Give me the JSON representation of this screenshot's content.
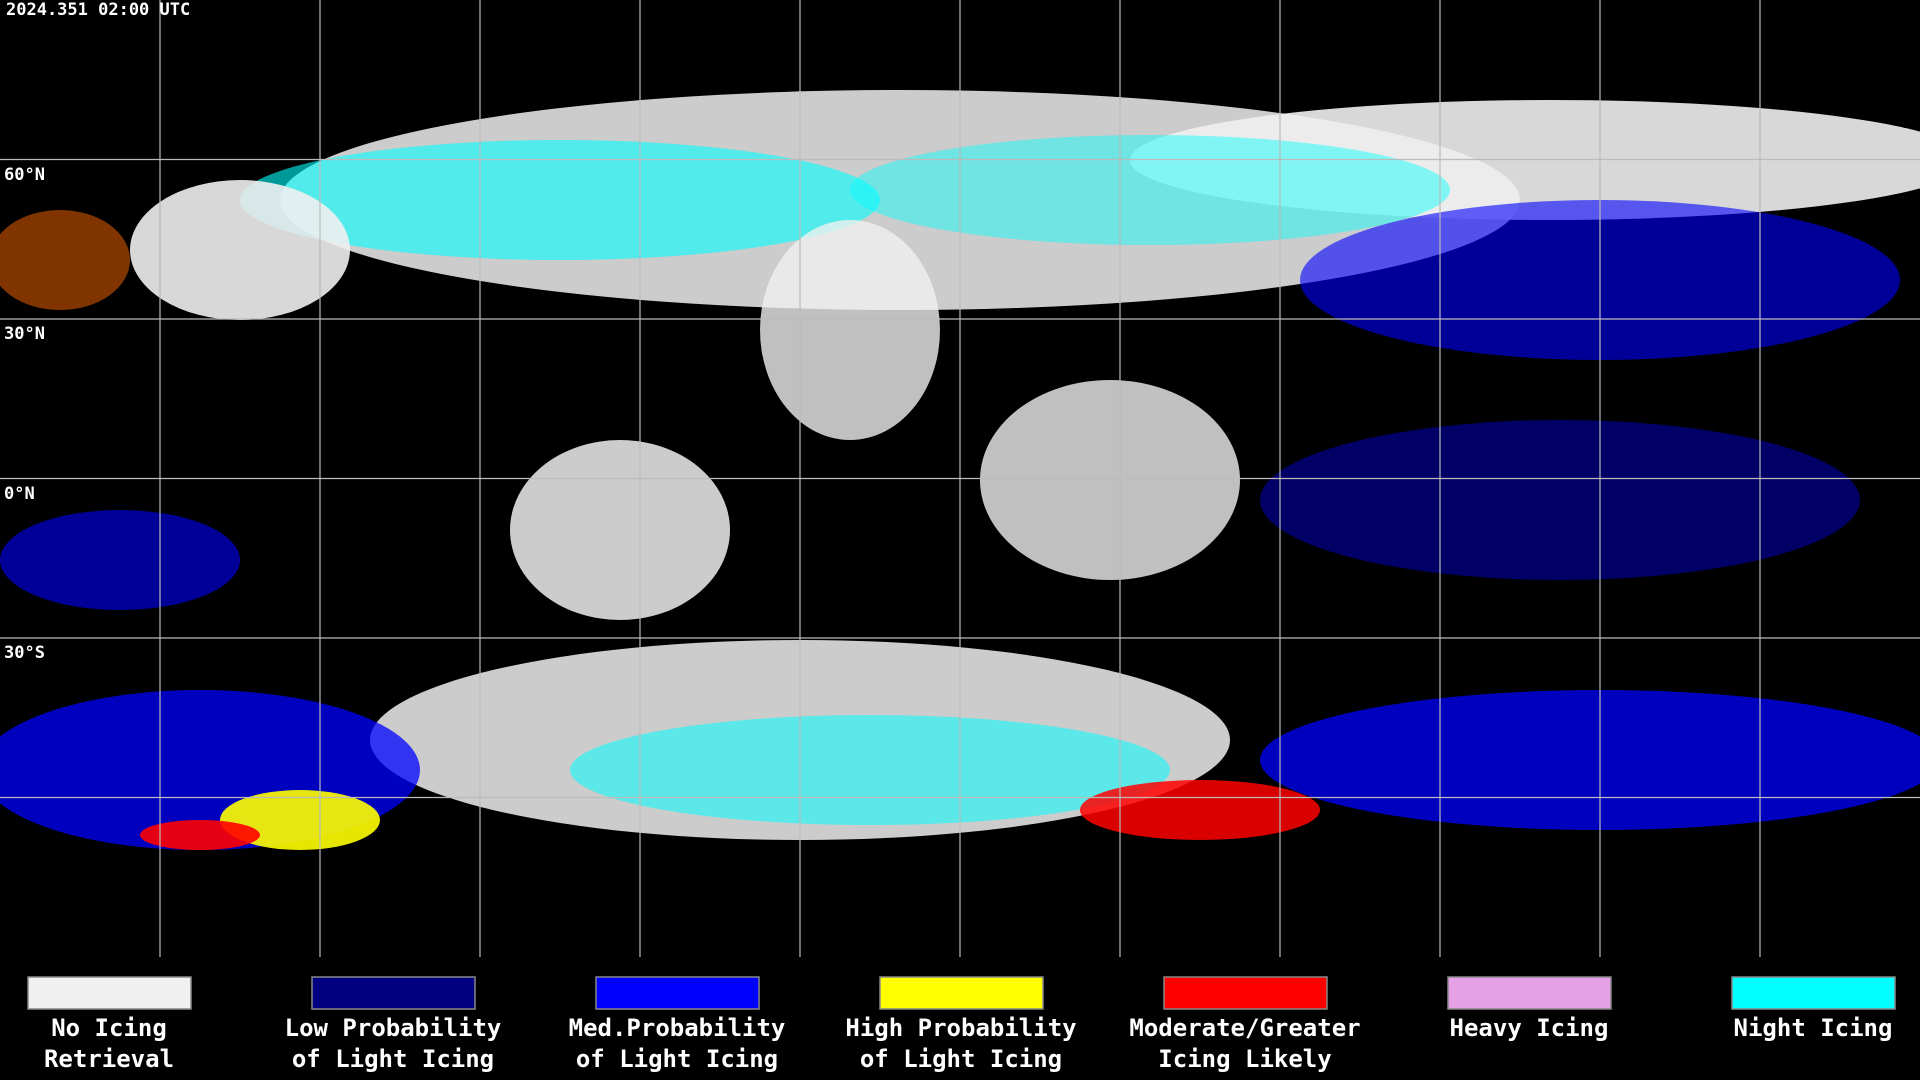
{
  "header": {
    "timestamp": "2024.351 02:00 UTC"
  },
  "lat_labels": [
    "60°N",
    "30°N",
    "0°N",
    "30°S"
  ],
  "legend": [
    {
      "label": [
        "No Icing",
        "Retrieval"
      ],
      "color": "#f0f0f0"
    },
    {
      "label": [
        "Low Probability",
        "of Light Icing"
      ],
      "color": "#000080"
    },
    {
      "label": [
        "Med.Probability",
        "of Light Icing"
      ],
      "color": "#0000ff"
    },
    {
      "label": [
        "High Probability",
        "of Light Icing"
      ],
      "color": "#ffff00"
    },
    {
      "label": [
        "Moderate/Greater",
        "Icing Likely"
      ],
      "color": "#ff0000"
    },
    {
      "label": [
        "Heavy Icing"
      ],
      "color": "#e6a0e6"
    },
    {
      "label": [
        "Night Icing"
      ],
      "color": "#00ffff"
    }
  ]
}
